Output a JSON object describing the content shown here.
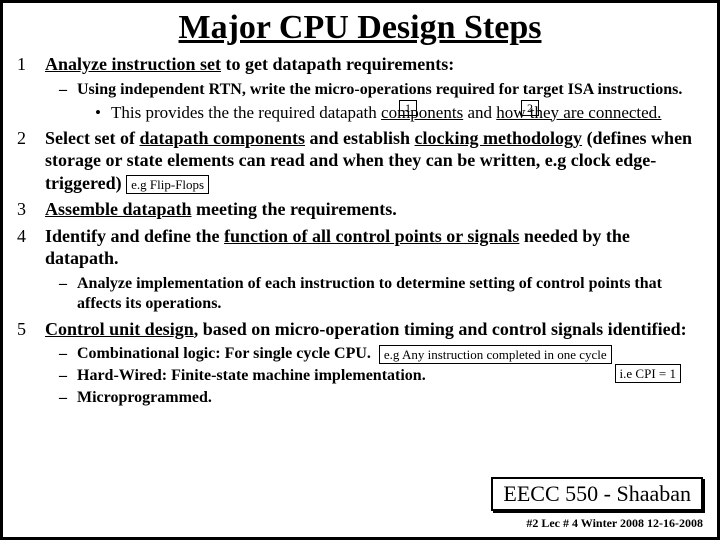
{
  "title": "Major CPU Design Steps",
  "items": {
    "s1": {
      "pre": "Analyze instruction set",
      "rest": " to get datapath requirements:"
    },
    "s1a_pre": "Using independent RTN, write the micro-operations required for target ISA instructions.",
    "box1": "1",
    "box2": "2",
    "s1b_pre": "This provides the the required datapath ",
    "s1b_u1": "components",
    "s1b_mid": " and ",
    "s1b_u2": "how they are connected.",
    "s2_a": "Select set of ",
    "s2_u1": "datapath components",
    "s2_b": " and establish ",
    "s2_u2": "clocking methodology",
    "s2_c": " (defines when storage or state elements can read and when they can be written, e.g clock edge-triggered)",
    "flipflops": "e.g Flip-Flops",
    "s3_u": "Assemble datapath",
    "s3_rest": " meeting the requirements.",
    "s4_a": "Identify and define the ",
    "s4_u": "function of all control points or signals",
    "s4_b": " needed by the datapath.",
    "s4sub": "Analyze implementation of each instruction to determine setting of control points that affects its operations.",
    "s5_u": "Control unit design",
    "s5_rest": ", based on micro-operation timing and control signals identified:",
    "s5a": "Combinational logic: For single cycle CPU.",
    "onecycle": "e.g Any instruction completed in one cycle",
    "cpi": "i.e CPI = 1",
    "s5b": "Hard-Wired:  Finite-state machine implementation.",
    "s5c": "Microprogrammed."
  },
  "course": "EECC 550 - Shaaban",
  "footer": "#2   Lec # 4   Winter 2008   12-16-2008"
}
